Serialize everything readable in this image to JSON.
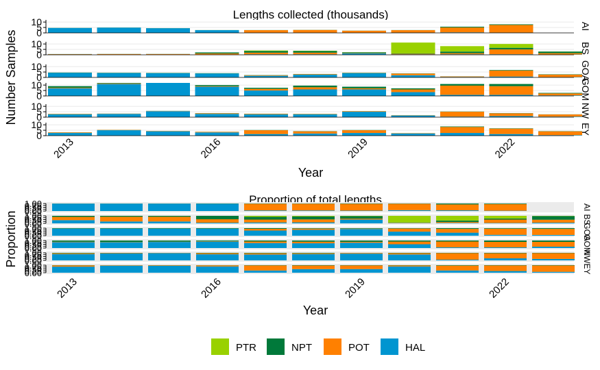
{
  "chart_data": [
    {
      "type": "bar",
      "stacked": true,
      "title": "Lengths collected (thousands)",
      "xlabel": "Year",
      "ylabel": "Number Samples",
      "facets": [
        "AI",
        "BS",
        "GOA",
        "GOM",
        "NW",
        "EY"
      ],
      "x": [
        2013,
        2014,
        2015,
        2016,
        2017,
        2018,
        2019,
        2020,
        2021,
        2022,
        2023
      ],
      "x_ticks": [
        "2013",
        "2016",
        "2019",
        "2022"
      ],
      "y_ticks": [
        "0",
        "5",
        "10"
      ],
      "ylim": [
        0,
        12
      ],
      "stack_order": [
        "HAL",
        "POT",
        "NPT",
        "PTR"
      ],
      "series": {
        "AI": {
          "HAL": [
            4.5,
            4.8,
            4.3,
            2.5,
            0.2,
            0.2,
            0.1,
            0.3,
            0.5,
            0.3,
            0
          ],
          "POT": [
            0,
            0,
            0,
            0,
            2.3,
            2.5,
            1.9,
            2.2,
            4.5,
            7.0,
            0
          ],
          "NPT": [
            0.1,
            0.1,
            0.1,
            0.1,
            0.1,
            0.1,
            0.1,
            0.1,
            0.7,
            0.6,
            0
          ],
          "PTR": [
            0,
            0,
            0,
            0,
            0,
            0,
            0,
            0,
            0,
            0,
            0
          ]
        },
        "BS": {
          "HAL": [
            0.3,
            0.2,
            0.2,
            0.2,
            0.5,
            0.5,
            1.2,
            0.4,
            0.5,
            0.5,
            0.3
          ],
          "POT": [
            0.3,
            0.5,
            0.5,
            1.0,
            1.5,
            1.5,
            0.3,
            0.5,
            1.0,
            4.5,
            1.2
          ],
          "NPT": [
            0.1,
            0.1,
            0.1,
            1.0,
            1.5,
            1.5,
            0.8,
            0.4,
            1.5,
            1.5,
            1.5
          ],
          "PTR": [
            0,
            0,
            0,
            0,
            0.5,
            0.3,
            0.1,
            10.0,
            5.0,
            3.5,
            0.1
          ]
        },
        "GOA": {
          "HAL": [
            4.2,
            4.0,
            3.8,
            3.6,
            1.5,
            2.5,
            3.8,
            2.0,
            0.4,
            0.8,
            0.3
          ],
          "POT": [
            0,
            0,
            0,
            0,
            0.5,
            0.5,
            0.2,
            1.5,
            0.5,
            5.5,
            2.3
          ],
          "NPT": [
            0.3,
            0.3,
            0.3,
            0.3,
            0.2,
            0.2,
            0.3,
            0.2,
            0.1,
            0.5,
            0.3
          ],
          "PTR": [
            0,
            0,
            0,
            0,
            0,
            0,
            0,
            0,
            0,
            0,
            0
          ]
        },
        "GOM": {
          "HAL": [
            7.0,
            11.0,
            12.5,
            8.5,
            5.0,
            6.0,
            6.0,
            3.5,
            1.0,
            1.0,
            0.5
          ],
          "POT": [
            0.5,
            0.5,
            0.5,
            0.5,
            1.5,
            2.0,
            1.0,
            2.5,
            8.5,
            8.0,
            1.8
          ],
          "NPT": [
            1.5,
            3.0,
            2.5,
            1.0,
            1.0,
            1.5,
            1.5,
            1.0,
            1.5,
            2.0,
            0.5
          ],
          "PTR": [
            0,
            0,
            0,
            0,
            0,
            0,
            0,
            0,
            0,
            0,
            0
          ]
        },
        "NW": {
          "HAL": [
            2.5,
            3.0,
            5.5,
            3.0,
            2.5,
            2.5,
            5.0,
            1.5,
            0.5,
            1.0,
            0.5
          ],
          "POT": [
            0.3,
            0.2,
            0.2,
            0.5,
            0.5,
            0.3,
            0.5,
            0.3,
            4.5,
            2.5,
            2.0
          ],
          "NPT": [
            0.2,
            0.1,
            0.1,
            0.2,
            0.2,
            0.2,
            0.1,
            0.1,
            0.2,
            0.2,
            0.1
          ],
          "PTR": [
            0,
            0,
            0,
            0,
            0,
            0,
            0,
            0,
            0,
            0,
            0
          ]
        },
        "EY": {
          "HAL": [
            2.5,
            5.0,
            4.0,
            3.0,
            1.5,
            2.0,
            2.5,
            2.0,
            2.5,
            1.5,
            0.5
          ],
          "POT": [
            0.5,
            0.3,
            0.3,
            0.5,
            3.5,
            2.0,
            2.5,
            0.3,
            5.5,
            5.0,
            3.5
          ],
          "NPT": [
            0.1,
            0.1,
            0.1,
            0.1,
            0.2,
            0.2,
            0.2,
            0.1,
            0.5,
            0.3,
            0.2
          ],
          "PTR": [
            0,
            0,
            0,
            0,
            0,
            0,
            0,
            0,
            0,
            0,
            0
          ]
        }
      }
    },
    {
      "type": "bar",
      "stacked": true,
      "normalized": true,
      "title": "Proportion of total lengths",
      "xlabel": "Year",
      "ylabel": "Proportion",
      "facets": [
        "AI",
        "BS",
        "GOA",
        "GOM",
        "NW",
        "EY"
      ],
      "x": [
        2013,
        2014,
        2015,
        2016,
        2017,
        2018,
        2019,
        2020,
        2021,
        2022,
        2023
      ],
      "x_ticks": [
        "2013",
        "2016",
        "2019",
        "2022"
      ],
      "y_ticks": [
        "0.00",
        "0.25",
        "0.50",
        "0.75",
        "1.00"
      ],
      "ylim": [
        0,
        1
      ]
    }
  ],
  "legend": {
    "items": [
      {
        "name": "PTR",
        "color": "#99d100"
      },
      {
        "name": "NPT",
        "color": "#00793a"
      },
      {
        "name": "POT",
        "color": "#ff8000"
      },
      {
        "name": "HAL",
        "color": "#0095d0"
      }
    ]
  }
}
